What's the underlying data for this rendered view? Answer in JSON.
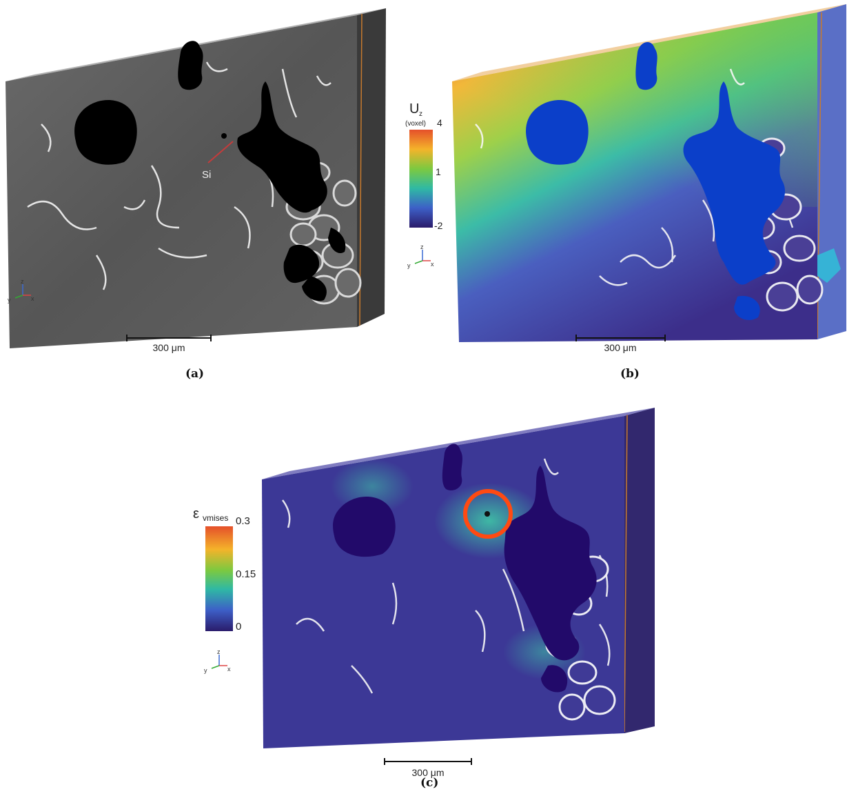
{
  "panels": {
    "a": {
      "caption": "(a)",
      "scale_bar": "300 μm",
      "annotation": "Si",
      "axes": {
        "up": "z",
        "left": "y",
        "right": "x"
      }
    },
    "b": {
      "caption": "(b)",
      "scale_bar": "300 μm",
      "colorbar": {
        "title": "U",
        "subscript": "z",
        "unit": "(voxel)",
        "ticks": [
          "4",
          "1",
          "-2"
        ]
      },
      "axes": {
        "up": "z",
        "left": "y",
        "right": "x"
      }
    },
    "c": {
      "caption": "(c)",
      "scale_bar": "300 μm",
      "colorbar": {
        "title": "ε",
        "subscript": "vmises",
        "ticks": [
          "0.3",
          "0.15",
          "0"
        ]
      },
      "axes": {
        "up": "z",
        "left": "y",
        "right": "x"
      }
    }
  },
  "colors": {
    "grain_gray": "#5b5b5b",
    "pore": "#000000",
    "pore_blue": "#0b3fc9",
    "strain_base": "#3a2f8f",
    "highlight_circle": "#ff4a12",
    "box_edge": "#c77a2e"
  }
}
